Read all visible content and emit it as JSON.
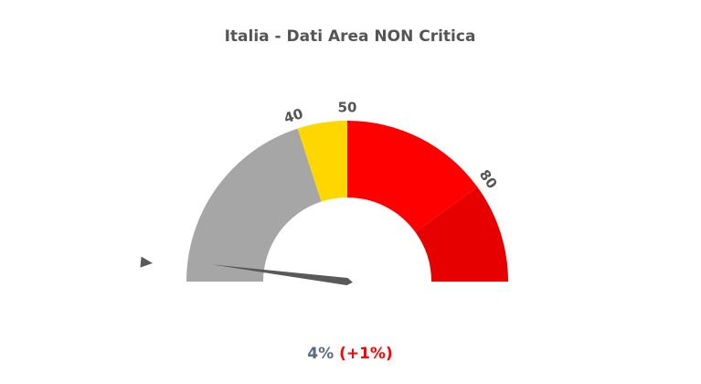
{
  "chart_data": {
    "type": "gauge",
    "title": "Italia - Dati Area NON Critica",
    "ylim": [
      0,
      100
    ],
    "yticks": [
      40,
      50,
      80
    ],
    "bands": [
      {
        "from": 0,
        "to": 40,
        "color": "#a6a6a6"
      },
      {
        "from": 40,
        "to": 50,
        "color": "#ffd700"
      },
      {
        "from": 50,
        "to": 80,
        "color": "#ff0000"
      },
      {
        "from": 80,
        "to": 100,
        "color": "#e60000"
      }
    ],
    "value": 4,
    "value_label": "4%",
    "change": 1,
    "change_label": "(+1%)",
    "marker": 3,
    "needle_color": "#595959",
    "value_color": "#5b6b80",
    "change_color": "#ff0000"
  }
}
